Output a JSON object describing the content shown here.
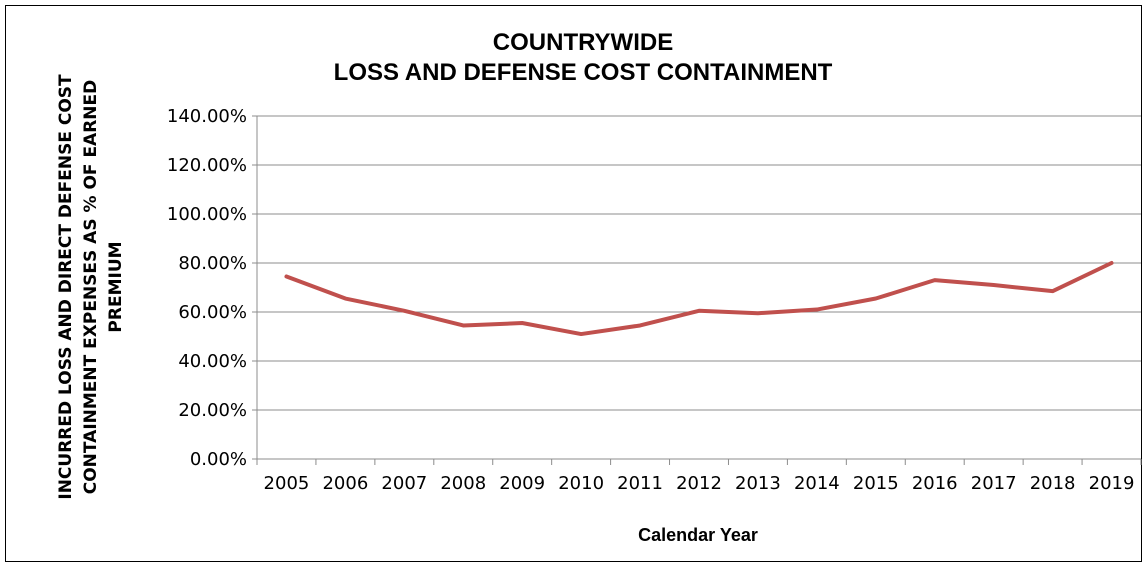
{
  "chart_data": {
    "type": "line",
    "title": "COUNTRYWIDE",
    "subtitle": "LOSS AND DEFENSE COST CONTAINMENT",
    "ylabel_line1": "INCURRED LOSS AND DIRECT DEFENSE COST",
    "ylabel_line2": "CONTAINMENT EXPENSES AS % OF EARNED",
    "ylabel_line3": "PREMIUM",
    "xlabel": "Calendar Year",
    "categories": [
      "2005",
      "2006",
      "2007",
      "2008",
      "2009",
      "2010",
      "2011",
      "2012",
      "2013",
      "2014",
      "2015",
      "2016",
      "2017",
      "2018",
      "2019"
    ],
    "series": [
      {
        "values": [
          74.5,
          65.5,
          60.5,
          54.5,
          55.5,
          51.0,
          54.5,
          60.5,
          59.5,
          61.0,
          65.5,
          73.0,
          71.0,
          68.5,
          80.0
        ]
      }
    ],
    "ylim": [
      0,
      140
    ],
    "yticks": [
      0,
      20,
      40,
      60,
      80,
      100,
      120,
      140
    ],
    "ytick_labels": [
      "0.00%",
      "20.00%",
      "40.00%",
      "60.00%",
      "80.00%",
      "100.00%",
      "120.00%",
      "140.00%"
    ],
    "grid": true,
    "legend": "none",
    "line_color": "#c0504d"
  }
}
